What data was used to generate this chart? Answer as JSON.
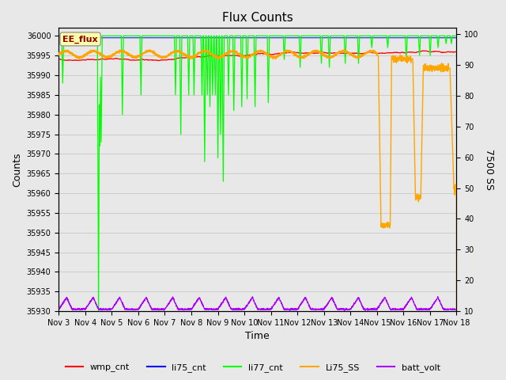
{
  "title": "Flux Counts",
  "xlabel": "Time",
  "ylabel_left": "Counts",
  "ylabel_right": "7500 SS",
  "annotation_text": "EE_flux",
  "annotation_bg": "#FFFFAA",
  "annotation_border": "#999999",
  "annotation_text_color": "#880000",
  "left_ylim": [
    35930,
    36002
  ],
  "right_ylim": [
    10,
    102
  ],
  "fig_bg": "#E8E8E8",
  "plot_bg": "#E8E8E8",
  "x_ticks": [
    "Nov 3",
    "Nov 4",
    "Nov 5",
    "Nov 6",
    "Nov 7",
    "Nov 8",
    "Nov 9",
    "Nov 10",
    "Nov 11",
    "Nov 12",
    "Nov 13",
    "Nov 14",
    "Nov 15",
    "Nov 16",
    "Nov 17",
    "Nov 18"
  ],
  "left_yticks": [
    35930,
    35935,
    35940,
    35945,
    35950,
    35955,
    35960,
    35965,
    35970,
    35975,
    35980,
    35985,
    35990,
    35995,
    36000
  ],
  "right_yticks": [
    10,
    20,
    30,
    40,
    50,
    60,
    70,
    80,
    90,
    100
  ],
  "legend_entries": [
    "wmp_cnt",
    "li75_cnt",
    "li77_cnt",
    "Li75_SS",
    "batt_volt"
  ],
  "legend_colors": [
    "red",
    "blue",
    "lime",
    "orange",
    "#AA00FF"
  ],
  "grid_color": "#CCCCCC",
  "wmp_color": "red",
  "li75_color": "blue",
  "li77_color": "lime",
  "li75ss_color": "orange",
  "batt_color": "#AA00FF"
}
